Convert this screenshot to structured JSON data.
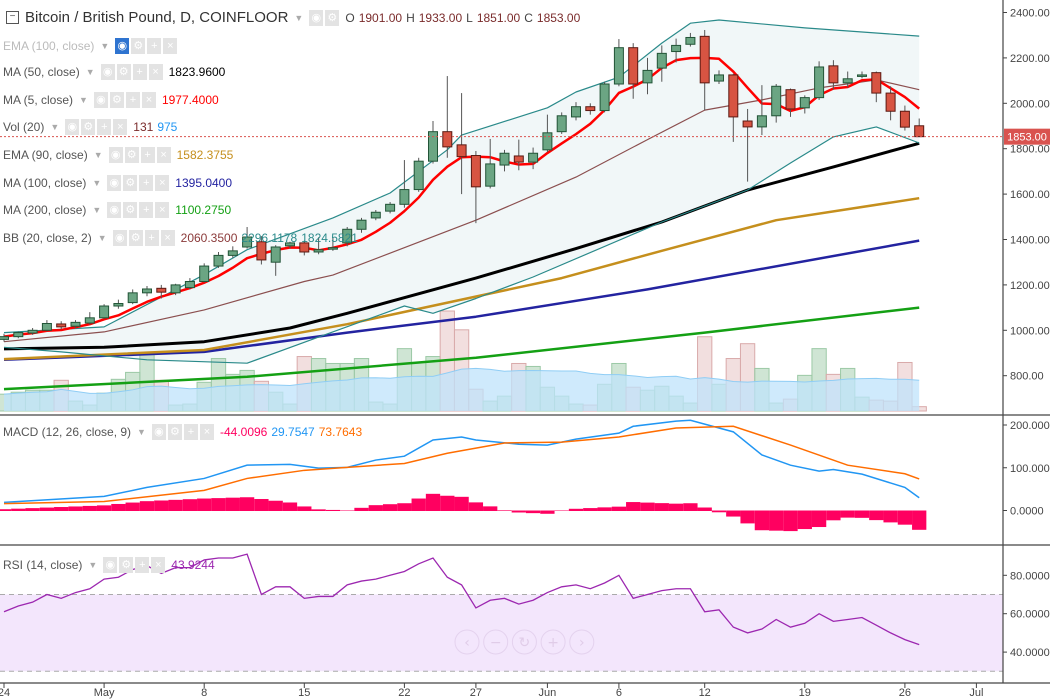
{
  "header": {
    "symbol_title": "Bitcoin / British Pound, D, COINFLOOR",
    "ohlc": {
      "o_label": "O",
      "o": "1901.00",
      "h_label": "H",
      "h": "1933.00",
      "l_label": "L",
      "l": "1851.00",
      "c_label": "C",
      "c": "1853.00"
    }
  },
  "icons": {
    "collapse": "minus-square-icon",
    "visibility": "eye-icon",
    "settings": "gear-icon",
    "add": "plus-icon",
    "remove": "close-icon",
    "menu": "caret-down-icon"
  },
  "legend": [
    {
      "label": "EMA (100, close)",
      "dim": true,
      "values": []
    },
    {
      "label": "MA (50, close)",
      "values": [
        {
          "text": "1823.9600",
          "color": "#000000"
        }
      ]
    },
    {
      "label": "MA (5, close)",
      "values": [
        {
          "text": "1977.4000",
          "color": "#ff0000"
        }
      ]
    },
    {
      "label": "Vol (20)",
      "values": [
        {
          "text": "131",
          "color": "#7a2b2b"
        },
        {
          "text": "975",
          "color": "#2196f3"
        }
      ]
    },
    {
      "label": "EMA (90, close)",
      "values": [
        {
          "text": "1582.3755",
          "color": "#c58f1d"
        }
      ]
    },
    {
      "label": "MA (100, close)",
      "values": [
        {
          "text": "1395.0400",
          "color": "#2323a0"
        }
      ]
    },
    {
      "label": "MA (200, close)",
      "values": [
        {
          "text": "1100.2750",
          "color": "#14a014"
        }
      ]
    },
    {
      "label": "BB (20, close, 2)",
      "values": [
        {
          "text": "2060.3500",
          "color": "#8b3a3a"
        },
        {
          "text": "2296.1178",
          "color": "#2a8a8a"
        },
        {
          "text": "1824.5821",
          "color": "#2a8a8a"
        }
      ]
    }
  ],
  "macd_legend": {
    "label": "MACD (12, 26, close, 9)",
    "values": [
      {
        "text": "-44.0096",
        "color": "#ff0060"
      },
      {
        "text": "29.7547",
        "color": "#2196f3"
      },
      {
        "text": "73.7643",
        "color": "#ff6d00"
      }
    ]
  },
  "rsi_legend": {
    "label": "RSI (14, close)",
    "values": [
      {
        "text": "43.9244",
        "color": "#9c27b0"
      }
    ]
  },
  "colors": {
    "up_body": "#6ba583",
    "up_border": "#225437",
    "down_body": "#d75442",
    "down_border": "#5b1a13",
    "ma5": "#ff0000",
    "ma50": "#000000",
    "ema90": "#c58f1d",
    "ma100": "#2323a0",
    "ma200": "#14a014",
    "bb_band": "#2a8a8a",
    "bb_basis": "#8b4f4f",
    "bb_fill": "#f1f7f8",
    "vol_up": "#a8d0b0",
    "vol_down": "#e8c4c4",
    "vol_ma": "#bfe3fb",
    "macd": "#2196f3",
    "signal": "#ff6d00",
    "histogram": "#ff0060",
    "rsi": "#9c27b0",
    "rsi_band": "#f3e6fc",
    "last_price": "#d9534f"
  },
  "chart_data": {
    "type": "candlestick",
    "x_ticks": [
      {
        "label": "24",
        "date": "Apr 24"
      },
      {
        "label": "May",
        "date": "May 1"
      },
      {
        "label": "8",
        "date": "May 8"
      },
      {
        "label": "15",
        "date": "May 15"
      },
      {
        "label": "22",
        "date": "May 22"
      },
      {
        "label": "27",
        "date": "May 27"
      },
      {
        "label": "Jun",
        "date": "Jun 1"
      },
      {
        "label": "6",
        "date": "Jun 6"
      },
      {
        "label": "12",
        "date": "Jun 12"
      },
      {
        "label": "19",
        "date": "Jun 19"
      },
      {
        "label": "26",
        "date": "Jun 26"
      },
      {
        "label": "Jul",
        "date": "Jul 1"
      }
    ],
    "price_ticks": [
      2400,
      2200,
      2000,
      1800,
      1600,
      1400,
      1200,
      1000,
      800
    ],
    "last_price": 1853,
    "candles_columns": [
      "date",
      "open",
      "high",
      "low",
      "close",
      "volume"
    ],
    "candles": [
      [
        "Apr 24",
        960,
        985,
        950,
        972,
        510
      ],
      [
        "Apr 25",
        972,
        995,
        965,
        990,
        570
      ],
      [
        "Apr 26",
        988,
        1010,
        980,
        1000,
        630
      ],
      [
        "Apr 27",
        1000,
        1045,
        995,
        1030,
        630
      ],
      [
        "Apr 28",
        1028,
        1040,
        1005,
        1015,
        930
      ],
      [
        "Apr 29",
        1018,
        1045,
        1010,
        1035,
        300
      ],
      [
        "Apr 30",
        1032,
        1080,
        1025,
        1055,
        180
      ],
      [
        "May 1",
        1055,
        1115,
        1050,
        1107,
        540
      ],
      [
        "May 2",
        1107,
        1135,
        1095,
        1118,
        960
      ],
      [
        "May 3",
        1122,
        1180,
        1115,
        1165,
        1170
      ],
      [
        "May 4",
        1165,
        1195,
        1150,
        1182,
        1710
      ],
      [
        "May 5",
        1185,
        1200,
        1140,
        1168,
        930
      ],
      [
        "May 6",
        1165,
        1205,
        1155,
        1200,
        180
      ],
      [
        "May 7",
        1188,
        1230,
        1180,
        1215,
        210
      ],
      [
        "May 8",
        1215,
        1295,
        1210,
        1283,
        870
      ],
      [
        "May 9",
        1283,
        1345,
        1275,
        1330,
        1590
      ],
      [
        "May 10",
        1330,
        1370,
        1320,
        1350,
        1110
      ],
      [
        "May 11",
        1367,
        1455,
        1360,
        1411,
        1230
      ],
      [
        "May 12",
        1390,
        1415,
        1290,
        1310,
        900
      ],
      [
        "May 13",
        1300,
        1375,
        1240,
        1367,
        570
      ],
      [
        "May 14",
        1372,
        1390,
        1360,
        1385,
        210
      ],
      [
        "May 15",
        1385,
        1395,
        1330,
        1345,
        1650
      ],
      [
        "May 16",
        1345,
        1410,
        1335,
        1355,
        1590
      ],
      [
        "May 17",
        1360,
        1410,
        1350,
        1364,
        1440
      ],
      [
        "May 18",
        1385,
        1455,
        1370,
        1445,
        1440
      ],
      [
        "May 19",
        1445,
        1495,
        1430,
        1485,
        1590
      ],
      [
        "May 20",
        1495,
        1530,
        1485,
        1520,
        270
      ],
      [
        "May 21",
        1525,
        1565,
        1515,
        1555,
        210
      ],
      [
        "May 22",
        1555,
        1750,
        1540,
        1620,
        1890
      ],
      [
        "May 23",
        1620,
        1760,
        1610,
        1745,
        1470
      ],
      [
        "May 24",
        1745,
        1922,
        1735,
        1875,
        1650
      ],
      [
        "May 25",
        1875,
        2120,
        1760,
        1808,
        3030
      ],
      [
        "May 26",
        1817,
        2045,
        1600,
        1765,
        2460
      ],
      [
        "May 27",
        1770,
        1790,
        1472,
        1632,
        660
      ],
      [
        "May 28",
        1635,
        1843,
        1625,
        1733,
        300
      ],
      [
        "May 29",
        1728,
        1795,
        1700,
        1780,
        450
      ],
      [
        "May 30",
        1768,
        1840,
        1705,
        1741,
        1440
      ],
      [
        "May 31",
        1741,
        1805,
        1710,
        1780,
        1350
      ],
      [
        "Jun 1",
        1795,
        1950,
        1785,
        1870,
        720
      ],
      [
        "Jun 2",
        1875,
        1960,
        1865,
        1945,
        450
      ],
      [
        "Jun 3",
        1940,
        2005,
        1925,
        1985,
        210
      ],
      [
        "Jun 4",
        1985,
        2000,
        1950,
        1968,
        180
      ],
      [
        "Jun 5",
        1968,
        2095,
        1960,
        2085,
        810
      ],
      [
        "Jun 6",
        2085,
        2283,
        2075,
        2245,
        1440
      ],
      [
        "Jun 7",
        2245,
        2265,
        2020,
        2085,
        720
      ],
      [
        "Jun 8",
        2090,
        2200,
        2040,
        2145,
        630
      ],
      [
        "Jun 9",
        2155,
        2255,
        2095,
        2220,
        750
      ],
      [
        "Jun 10",
        2228,
        2285,
        2180,
        2255,
        450
      ],
      [
        "Jun 11",
        2260,
        2310,
        2250,
        2290,
        240
      ],
      [
        "Jun 12",
        2295,
        2323,
        1970,
        2090,
        2250
      ],
      [
        "Jun 13",
        2098,
        2145,
        2085,
        2125,
        810
      ],
      [
        "Jun 14",
        2125,
        2130,
        1830,
        1940,
        1590
      ],
      [
        "Jun 15",
        1922,
        1975,
        1655,
        1896,
        2040
      ],
      [
        "Jun 16",
        1896,
        2080,
        1860,
        1945,
        1290
      ],
      [
        "Jun 17",
        1945,
        2085,
        1915,
        2075,
        240
      ],
      [
        "Jun 18",
        2060,
        2065,
        1940,
        1975,
        360
      ],
      [
        "Jun 19",
        1980,
        2035,
        1955,
        2025,
        1080
      ],
      [
        "Jun 20",
        2025,
        2185,
        2015,
        2160,
        1890
      ],
      [
        "Jun 21",
        2165,
        2190,
        2060,
        2090,
        1110
      ],
      [
        "Jun 22",
        2090,
        2140,
        2070,
        2108,
        1290
      ],
      [
        "Jun 23",
        2120,
        2140,
        2110,
        2125,
        420
      ],
      [
        "Jun 24",
        2135,
        2140,
        2005,
        2045,
        330
      ],
      [
        "Jun 25",
        2045,
        2075,
        1925,
        1965,
        300
      ],
      [
        "Jun 26",
        1965,
        1990,
        1880,
        1895,
        1470
      ],
      [
        "Jun 27",
        1901,
        1933,
        1851,
        1853,
        131
      ]
    ],
    "ma50": [
      [
        "Apr 24",
        918
      ],
      [
        "May 1",
        925
      ],
      [
        "May 8",
        950
      ],
      [
        "May 14",
        1010
      ],
      [
        "May 18",
        1075
      ],
      [
        "May 27",
        1230
      ],
      [
        "Jun 3",
        1360
      ],
      [
        "Jun 9",
        1477
      ],
      [
        "Jun 15",
        1618
      ],
      [
        "Jun 21",
        1720
      ],
      [
        "Jun 27",
        1824
      ]
    ],
    "ema90": [
      [
        "Apr 24",
        873
      ],
      [
        "May 8",
        913
      ],
      [
        "May 18",
        1027
      ],
      [
        "Jun 2",
        1230
      ],
      [
        "Jun 9",
        1350
      ],
      [
        "Jun 17",
        1485
      ],
      [
        "Jun 27",
        1582
      ]
    ],
    "ma100": [
      [
        "Apr 24",
        870
      ],
      [
        "May 8",
        905
      ],
      [
        "May 18",
        990
      ],
      [
        "May 27",
        1060
      ],
      [
        "Jun 8",
        1180
      ],
      [
        "Jun 27",
        1395
      ]
    ],
    "ma200": [
      [
        "Apr 24",
        741
      ],
      [
        "May 11",
        795
      ],
      [
        "May 27",
        879
      ],
      [
        "Jun 12",
        990
      ],
      [
        "Jun 27",
        1100
      ]
    ],
    "bb_basis": [
      [
        "Apr 24",
        950
      ],
      [
        "May 1",
        993
      ],
      [
        "May 8",
        1090
      ],
      [
        "May 15",
        1215
      ],
      [
        "May 17",
        1243
      ],
      [
        "May 27",
        1485
      ],
      [
        "Jun 3",
        1675
      ],
      [
        "Jun 8",
        1840
      ],
      [
        "Jun 12",
        1970
      ],
      [
        "Jun 16",
        2015
      ],
      [
        "Jun 20",
        2068
      ],
      [
        "Jun 24",
        2103
      ],
      [
        "Jun 27",
        2060
      ]
    ],
    "bb_upper": [
      [
        "Apr 24",
        990
      ],
      [
        "May 1",
        1015
      ],
      [
        "May 8",
        1245
      ],
      [
        "May 11",
        1355
      ],
      [
        "May 17",
        1495
      ],
      [
        "May 21",
        1605
      ],
      [
        "May 25",
        1795
      ],
      [
        "May 26",
        1860
      ],
      [
        "Jun 1",
        1980
      ],
      [
        "Jun 3",
        2050
      ],
      [
        "Jun 6",
        2115
      ],
      [
        "Jun 9",
        2265
      ],
      [
        "Jun 11",
        2353
      ],
      [
        "Jun 13",
        2367
      ],
      [
        "Jun 19",
        2332
      ],
      [
        "Jun 27",
        2296
      ]
    ],
    "bb_lower": [
      [
        "Apr 24",
        925
      ],
      [
        "Apr 28",
        905
      ],
      [
        "May 4",
        870
      ],
      [
        "May 11",
        855
      ],
      [
        "May 16",
        970
      ],
      [
        "May 22",
        1107
      ],
      [
        "May 24",
        1075
      ],
      [
        "May 27",
        1140
      ],
      [
        "May 31",
        1235
      ],
      [
        "Jun 9",
        1477
      ],
      [
        "Jun 15",
        1618
      ],
      [
        "Jun 18",
        1737
      ],
      [
        "Jun 21",
        1852
      ],
      [
        "Jun 24",
        1896
      ],
      [
        "Jun 27",
        1825
      ]
    ],
    "macd": {
      "ticks": [
        200,
        100,
        0
      ],
      "macd_line": [
        [
          "Apr 24",
          19
        ],
        [
          "May 1",
          33
        ],
        [
          "May 4",
          54
        ],
        [
          "May 8",
          75
        ],
        [
          "May 11",
          106
        ],
        [
          "May 14",
          108
        ],
        [
          "May 16",
          99
        ],
        [
          "May 18",
          101
        ],
        [
          "May 20",
          118
        ],
        [
          "May 22",
          127
        ],
        [
          "May 24",
          165
        ],
        [
          "May 26",
          172
        ],
        [
          "May 27",
          165
        ],
        [
          "May 30",
          155
        ],
        [
          "Jun 1",
          153
        ],
        [
          "Jun 3",
          167
        ],
        [
          "Jun 6",
          181
        ],
        [
          "Jun 7",
          197
        ],
        [
          "Jun 10",
          209
        ],
        [
          "Jun 11",
          211
        ],
        [
          "Jun 14",
          184
        ],
        [
          "Jun 16",
          130
        ],
        [
          "Jun 18",
          106
        ],
        [
          "Jun 20",
          92
        ],
        [
          "Jun 21",
          96
        ],
        [
          "Jun 23",
          85
        ],
        [
          "Jun 26",
          54
        ],
        [
          "Jun 27",
          29.75
        ]
      ],
      "signal_line": [
        [
          "Apr 24",
          16
        ],
        [
          "May 1",
          21
        ],
        [
          "May 8",
          47
        ],
        [
          "May 11",
          75
        ],
        [
          "May 15",
          94
        ],
        [
          "May 18",
          101
        ],
        [
          "May 22",
          110
        ],
        [
          "May 25",
          134
        ],
        [
          "May 29",
          158
        ],
        [
          "Jun 2",
          160
        ],
        [
          "Jun 6",
          172
        ],
        [
          "Jun 10",
          193
        ],
        [
          "Jun 14",
          197
        ],
        [
          "Jun 18",
          153
        ],
        [
          "Jun 22",
          106
        ],
        [
          "Jun 26",
          86
        ],
        [
          "Jun 27",
          73.76
        ]
      ]
    },
    "rsi": {
      "ticks": [
        80,
        60,
        40
      ],
      "bands": [
        70,
        30
      ],
      "values": [
        61,
        64,
        66,
        70,
        68,
        71,
        73,
        78,
        79,
        83,
        85,
        81,
        84,
        84,
        88,
        89,
        89,
        91,
        70,
        74,
        74,
        68,
        69,
        69,
        75,
        77,
        78,
        80,
        82,
        86,
        89,
        79,
        75,
        63,
        67,
        68,
        65,
        67,
        71,
        74,
        75,
        73,
        76,
        80,
        68,
        70,
        72,
        73,
        73,
        61,
        62,
        53,
        50,
        52,
        57,
        53,
        55,
        60,
        56,
        57,
        58,
        54,
        50,
        46.5,
        43.92
      ]
    }
  },
  "nav_buttons": [
    {
      "name": "scroll-left-button",
      "glyph": "‹"
    },
    {
      "name": "zoom-out-button",
      "glyph": "−"
    },
    {
      "name": "reset-button",
      "glyph": "↻"
    },
    {
      "name": "zoom-in-button",
      "glyph": "+"
    },
    {
      "name": "scroll-right-button",
      "glyph": "›"
    }
  ]
}
